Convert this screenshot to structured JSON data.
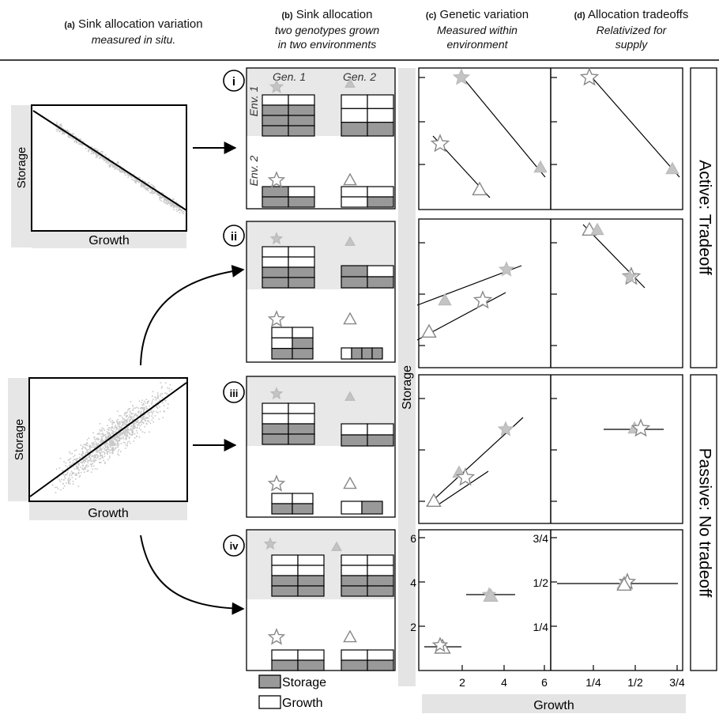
{
  "headers": {
    "a": {
      "tag": "(a)",
      "title": "Sink allocation variation",
      "subtitle": "measured in situ."
    },
    "b": {
      "tag": "(b)",
      "title": "Sink allocation",
      "subtitle_1": "two genotypes grown",
      "subtitle_2": "in two environments"
    },
    "c": {
      "tag": "(c)",
      "title": "Genetic variation",
      "subtitle_1": "Measured within",
      "subtitle_2": "environment"
    },
    "d": {
      "tag": "(d)",
      "title": "Allocation tradeoffs",
      "subtitle_1": "Relativized for",
      "subtitle_2": "supply"
    }
  },
  "panel_a": {
    "ylabel": "Storage",
    "xlabel": "Growth"
  },
  "panel_b": {
    "gen1": "Gen. 1",
    "gen2": "Gen. 2",
    "env1": "Env. 1",
    "env2": "Env. 2",
    "rows": [
      "i",
      "ii",
      "iii",
      "iv"
    ],
    "legend": {
      "storage": "Storage",
      "growth": "Growth"
    }
  },
  "side_labels": {
    "active": "Active: Tradeoff",
    "passive": "Passive: No tradeoff"
  },
  "axes": {
    "storage_label": "Storage",
    "growth_label": "Growth",
    "c_x_ticks": [
      "2",
      "4",
      "6"
    ],
    "c_y_ticks": [
      "2",
      "4",
      "6"
    ],
    "d_x_ticks": [
      "1/4",
      "1/2",
      "3/4"
    ],
    "d_y_ticks": [
      "1/4",
      "1/2",
      "3/4"
    ]
  },
  "colors": {
    "storage_fill": "#999999",
    "growth_fill": "#ffffff",
    "env1_band": "#e8e8e8",
    "scatter": "#c8c8c8",
    "filled_marker": "#c4c4c4"
  }
}
